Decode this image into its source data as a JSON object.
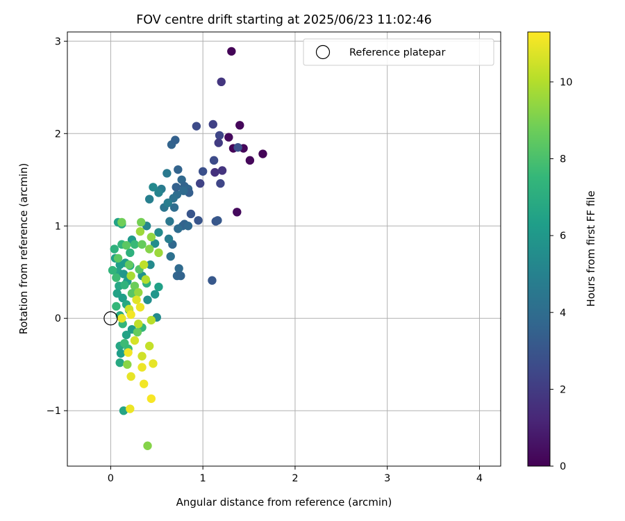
{
  "chart_data": {
    "type": "scatter",
    "title": "FOV centre drift starting at 2025/06/23 11:02:46",
    "xlabel": "Angular distance from reference (arcmin)",
    "ylabel": "Rotation from reference (arcmin)",
    "xlim": [
      -0.47,
      4.23
    ],
    "ylim": [
      -1.6,
      3.1
    ],
    "xticks": [
      0,
      1,
      2,
      3,
      4
    ],
    "yticks": [
      -1,
      0,
      1,
      2,
      3
    ],
    "xtick_labels": [
      "0",
      "1",
      "2",
      "3",
      "4"
    ],
    "ytick_labels": [
      "−1",
      "0",
      "1",
      "2",
      "3"
    ],
    "grid": true,
    "legend": {
      "position": "top-right",
      "entries": [
        "Reference platepar"
      ]
    },
    "reference_point": {
      "label": "Reference platepar",
      "x": 0,
      "y": 0
    },
    "colorbar": {
      "label": "Hours from first FF file",
      "colormap": "viridis",
      "range": [
        0,
        11.3
      ],
      "ticks": [
        0,
        2,
        4,
        6,
        8,
        10
      ],
      "tick_labels": [
        "0",
        "2",
        "4",
        "6",
        "8",
        "10"
      ]
    },
    "points": [
      {
        "x": 1.31,
        "y": 2.89,
        "hours": 0.1
      },
      {
        "x": 1.4,
        "y": 2.09,
        "hours": 0.2
      },
      {
        "x": 1.28,
        "y": 1.96,
        "hours": 0.3
      },
      {
        "x": 1.33,
        "y": 1.84,
        "hours": 0.1
      },
      {
        "x": 1.44,
        "y": 1.84,
        "hours": 0.2
      },
      {
        "x": 1.65,
        "y": 1.78,
        "hours": 0.1
      },
      {
        "x": 1.51,
        "y": 1.71,
        "hours": 0.2
      },
      {
        "x": 1.37,
        "y": 1.15,
        "hours": 0.3
      },
      {
        "x": 1.2,
        "y": 2.56,
        "hours": 1.8
      },
      {
        "x": 1.11,
        "y": 2.1,
        "hours": 2.2
      },
      {
        "x": 0.93,
        "y": 2.08,
        "hours": 2.6
      },
      {
        "x": 1.18,
        "y": 1.98,
        "hours": 2.4
      },
      {
        "x": 1.17,
        "y": 1.9,
        "hours": 2.0
      },
      {
        "x": 1.38,
        "y": 1.85,
        "hours": 2.8
      },
      {
        "x": 1.12,
        "y": 1.71,
        "hours": 2.6
      },
      {
        "x": 1.0,
        "y": 1.59,
        "hours": 2.8
      },
      {
        "x": 1.13,
        "y": 1.58,
        "hours": 1.6
      },
      {
        "x": 1.21,
        "y": 1.6,
        "hours": 1.7
      },
      {
        "x": 0.97,
        "y": 1.46,
        "hours": 2.3
      },
      {
        "x": 1.19,
        "y": 1.46,
        "hours": 2.4
      },
      {
        "x": 0.87,
        "y": 1.13,
        "hours": 3.0
      },
      {
        "x": 0.95,
        "y": 1.06,
        "hours": 3.0
      },
      {
        "x": 1.14,
        "y": 1.05,
        "hours": 3.0
      },
      {
        "x": 1.16,
        "y": 1.06,
        "hours": 3.1
      },
      {
        "x": 1.1,
        "y": 0.41,
        "hours": 3.1
      },
      {
        "x": 0.66,
        "y": 1.88,
        "hours": 3.6
      },
      {
        "x": 0.7,
        "y": 1.93,
        "hours": 3.5
      },
      {
        "x": 0.73,
        "y": 1.61,
        "hours": 3.6
      },
      {
        "x": 0.77,
        "y": 1.5,
        "hours": 3.8
      },
      {
        "x": 0.8,
        "y": 1.43,
        "hours": 3.6
      },
      {
        "x": 0.84,
        "y": 1.4,
        "hours": 3.7
      },
      {
        "x": 0.85,
        "y": 1.36,
        "hours": 3.4
      },
      {
        "x": 0.79,
        "y": 1.38,
        "hours": 3.9
      },
      {
        "x": 0.72,
        "y": 1.34,
        "hours": 4.0
      },
      {
        "x": 0.71,
        "y": 1.42,
        "hours": 3.5
      },
      {
        "x": 0.68,
        "y": 1.3,
        "hours": 4.2
      },
      {
        "x": 0.69,
        "y": 1.2,
        "hours": 4.0
      },
      {
        "x": 0.78,
        "y": 1.0,
        "hours": 3.8
      },
      {
        "x": 0.8,
        "y": 1.02,
        "hours": 3.6
      },
      {
        "x": 0.84,
        "y": 1.0,
        "hours": 3.8
      },
      {
        "x": 0.73,
        "y": 0.97,
        "hours": 4.0
      },
      {
        "x": 0.67,
        "y": 0.8,
        "hours": 3.8
      },
      {
        "x": 0.65,
        "y": 0.67,
        "hours": 4.2
      },
      {
        "x": 0.74,
        "y": 0.54,
        "hours": 3.9
      },
      {
        "x": 0.72,
        "y": 0.46,
        "hours": 3.7
      },
      {
        "x": 0.76,
        "y": 0.46,
        "hours": 3.6
      },
      {
        "x": 0.61,
        "y": 1.57,
        "hours": 4.6
      },
      {
        "x": 0.58,
        "y": 1.2,
        "hours": 4.4
      },
      {
        "x": 0.55,
        "y": 1.4,
        "hours": 4.7
      },
      {
        "x": 0.62,
        "y": 1.25,
        "hours": 4.8
      },
      {
        "x": 0.64,
        "y": 1.05,
        "hours": 4.5
      },
      {
        "x": 0.63,
        "y": 0.86,
        "hours": 4.8
      },
      {
        "x": 0.42,
        "y": 1.29,
        "hours": 4.9
      },
      {
        "x": 0.46,
        "y": 1.42,
        "hours": 5.3
      },
      {
        "x": 0.52,
        "y": 1.36,
        "hours": 5.1
      },
      {
        "x": 0.39,
        "y": 1.0,
        "hours": 5.2
      },
      {
        "x": 0.48,
        "y": 0.81,
        "hours": 5.5
      },
      {
        "x": 0.52,
        "y": 0.93,
        "hours": 5.4
      },
      {
        "x": 0.43,
        "y": 0.58,
        "hours": 5.4
      },
      {
        "x": 0.34,
        "y": 0.46,
        "hours": 5.8
      },
      {
        "x": 0.4,
        "y": 0.2,
        "hours": 5.6
      },
      {
        "x": 0.48,
        "y": 0.26,
        "hours": 5.9
      },
      {
        "x": 0.5,
        "y": 0.01,
        "hours": 5.4
      },
      {
        "x": 0.08,
        "y": 1.04,
        "hours": 6.5
      },
      {
        "x": 0.12,
        "y": 1.02,
        "hours": 6.8
      },
      {
        "x": 0.23,
        "y": 0.85,
        "hours": 6.1
      },
      {
        "x": 0.05,
        "y": 0.65,
        "hours": 6.4
      },
      {
        "x": 0.1,
        "y": 0.58,
        "hours": 6.3
      },
      {
        "x": 0.16,
        "y": 0.6,
        "hours": 6.2
      },
      {
        "x": 0.21,
        "y": 0.57,
        "hours": 6.7
      },
      {
        "x": 0.08,
        "y": 0.5,
        "hours": 6.6
      },
      {
        "x": 0.14,
        "y": 0.48,
        "hours": 6.0
      },
      {
        "x": 0.18,
        "y": 0.4,
        "hours": 6.2
      },
      {
        "x": 0.09,
        "y": 0.35,
        "hours": 6.7
      },
      {
        "x": 0.07,
        "y": 0.27,
        "hours": 6.5
      },
      {
        "x": 0.13,
        "y": 0.22,
        "hours": 6.3
      },
      {
        "x": 0.17,
        "y": 0.15,
        "hours": 6.8
      },
      {
        "x": 0.2,
        "y": 0.09,
        "hours": 6.4
      },
      {
        "x": 0.1,
        "y": 0.03,
        "hours": 6.9
      },
      {
        "x": 0.1,
        "y": -0.3,
        "hours": 6.7
      },
      {
        "x": 0.11,
        "y": -0.38,
        "hours": 6.3
      },
      {
        "x": 0.1,
        "y": -0.48,
        "hours": 6.8
      },
      {
        "x": 0.14,
        "y": -1.0,
        "hours": 6.6
      },
      {
        "x": 0.52,
        "y": 0.34,
        "hours": 6.4
      },
      {
        "x": 0.23,
        "y": -0.12,
        "hours": 6.2
      },
      {
        "x": 0.17,
        "y": -0.18,
        "hours": 6.5
      },
      {
        "x": 0.04,
        "y": 0.75,
        "hours": 7.2
      },
      {
        "x": 0.12,
        "y": 0.8,
        "hours": 7.4
      },
      {
        "x": 0.26,
        "y": 0.8,
        "hours": 7.6
      },
      {
        "x": 0.21,
        "y": 0.71,
        "hours": 7.2
      },
      {
        "x": 0.02,
        "y": 0.52,
        "hours": 7.4
      },
      {
        "x": 0.06,
        "y": 0.44,
        "hours": 7.7
      },
      {
        "x": 0.15,
        "y": 0.36,
        "hours": 7.3
      },
      {
        "x": 0.06,
        "y": 0.13,
        "hours": 7.5
      },
      {
        "x": 0.13,
        "y": -0.06,
        "hours": 7.4
      },
      {
        "x": 0.15,
        "y": -0.27,
        "hours": 7.7
      },
      {
        "x": 0.19,
        "y": -0.33,
        "hours": 7.6
      },
      {
        "x": 0.34,
        "y": -0.1,
        "hours": 7.5
      },
      {
        "x": 0.39,
        "y": 0.38,
        "hours": 7.2
      },
      {
        "x": 0.12,
        "y": 1.04,
        "hours": 8.8
      },
      {
        "x": 0.17,
        "y": 0.79,
        "hours": 8.4
      },
      {
        "x": 0.33,
        "y": 1.04,
        "hours": 8.9
      },
      {
        "x": 0.34,
        "y": 0.8,
        "hours": 8.6
      },
      {
        "x": 0.2,
        "y": 0.58,
        "hours": 8.5
      },
      {
        "x": 0.31,
        "y": 0.53,
        "hours": 8.2
      },
      {
        "x": 0.26,
        "y": 0.35,
        "hours": 8.7
      },
      {
        "x": 0.23,
        "y": 0.27,
        "hours": 8.3
      },
      {
        "x": 0.08,
        "y": 0.65,
        "hours": 8.4
      },
      {
        "x": 0.29,
        "y": -0.15,
        "hours": 8.6
      },
      {
        "x": 0.42,
        "y": 0.75,
        "hours": 9.2
      },
      {
        "x": 0.52,
        "y": 0.71,
        "hours": 9.6
      },
      {
        "x": 0.44,
        "y": 0.88,
        "hours": 9.4
      },
      {
        "x": 0.32,
        "y": 0.94,
        "hours": 9.6
      },
      {
        "x": 0.22,
        "y": 0.46,
        "hours": 9.8
      },
      {
        "x": 0.3,
        "y": 0.28,
        "hours": 9.5
      },
      {
        "x": 0.18,
        "y": -0.5,
        "hours": 9.3
      },
      {
        "x": 0.4,
        "y": -1.38,
        "hours": 9.2
      },
      {
        "x": 0.36,
        "y": 0.58,
        "hours": 10.2
      },
      {
        "x": 0.38,
        "y": 0.42,
        "hours": 10.0
      },
      {
        "x": 0.2,
        "y": 0.1,
        "hours": 10.4
      },
      {
        "x": 0.3,
        "y": -0.06,
        "hours": 10.2
      },
      {
        "x": 0.44,
        "y": -0.02,
        "hours": 10.1
      },
      {
        "x": 0.42,
        "y": -0.3,
        "hours": 10.3
      },
      {
        "x": 0.34,
        "y": -0.41,
        "hours": 10.5
      },
      {
        "x": 0.28,
        "y": 0.2,
        "hours": 10.8
      },
      {
        "x": 0.32,
        "y": 0.12,
        "hours": 11.0
      },
      {
        "x": 0.22,
        "y": 0.04,
        "hours": 11.1
      },
      {
        "x": 0.12,
        "y": 0.0,
        "hours": 10.9
      },
      {
        "x": 0.19,
        "y": -0.37,
        "hours": 11.1
      },
      {
        "x": 0.46,
        "y": -0.49,
        "hours": 10.9
      },
      {
        "x": 0.34,
        "y": -0.53,
        "hours": 11.0
      },
      {
        "x": 0.22,
        "y": -0.63,
        "hours": 10.9
      },
      {
        "x": 0.36,
        "y": -0.71,
        "hours": 11.1
      },
      {
        "x": 0.44,
        "y": -0.87,
        "hours": 11.2
      },
      {
        "x": 0.21,
        "y": -0.98,
        "hours": 11.0
      },
      {
        "x": 0.26,
        "y": -0.24,
        "hours": 10.6
      }
    ]
  }
}
